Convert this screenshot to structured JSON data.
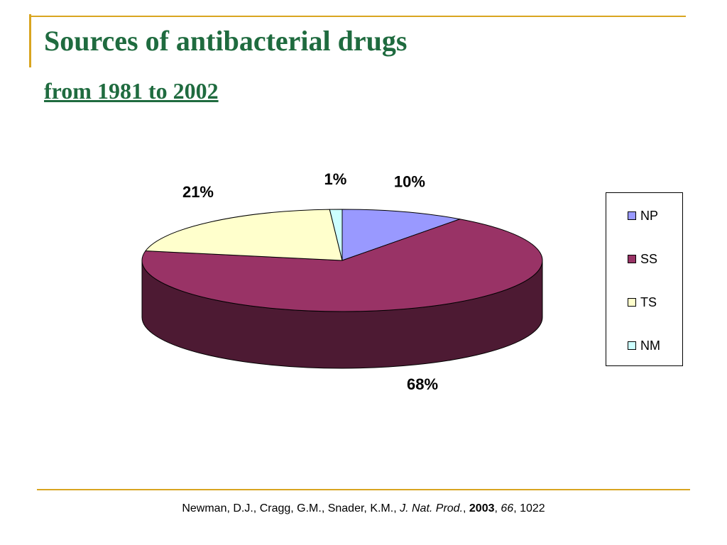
{
  "title": "Sources of  antibacterial drugs",
  "subtitle": "from 1981 to 2002",
  "chart_data": {
    "type": "pie",
    "categories": [
      "NP",
      "SS",
      "TS",
      "NM"
    ],
    "values": [
      10,
      68,
      21,
      1
    ],
    "data_labels": [
      "10%",
      "68%",
      "21%",
      "1%"
    ],
    "legend_position": "right",
    "colors": [
      "#9999ff",
      "#993366",
      "#ffffcc",
      "#ccffff"
    ],
    "side_colors": [
      "#4d4d80",
      "#4d1a33",
      "#808066",
      "#668080"
    ],
    "style": "3d"
  },
  "citation": {
    "authors": "Newman, D.J., Cragg, G.M., Snader, K.M., ",
    "journal": "J. Nat. Prod.",
    "sep1": ", ",
    "year": "2003",
    "sep2": ", ",
    "volume": "66",
    "pages": ", 1022"
  },
  "colors": {
    "title": "#1f6b3f",
    "accent_lines": "#d9a520"
  }
}
